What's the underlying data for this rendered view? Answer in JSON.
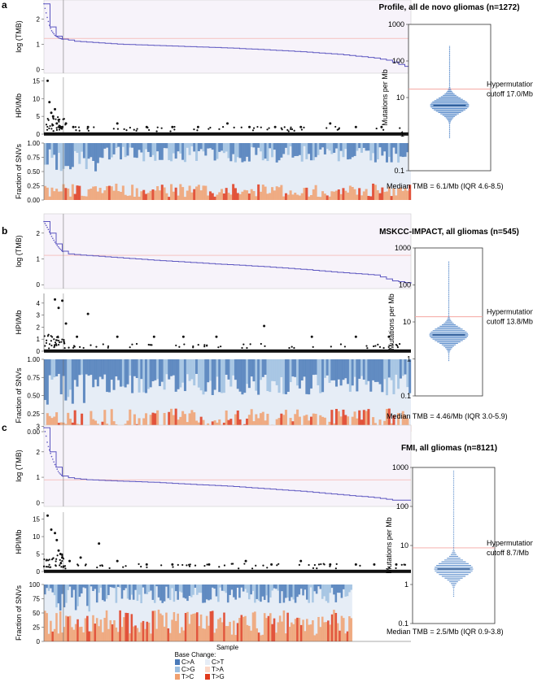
{
  "chart_data": [
    {
      "panel": "a",
      "type": "scatter",
      "title": "Profile, all de novo gliomas (n=1272)",
      "tmb_profile": {
        "ylabel": "log (TMB)",
        "yticks": [
          0,
          1,
          2
        ],
        "ylim": [
          -0.15,
          2.75
        ],
        "x": [
          0,
          0.005,
          0.01,
          0.015,
          0.02,
          0.03,
          0.04,
          0.05,
          0.06,
          0.08,
          0.1,
          0.15,
          0.2,
          0.3,
          0.4,
          0.5,
          0.6,
          0.7,
          0.8,
          0.9,
          0.94,
          0.97,
          1
        ],
        "y": [
          2.6,
          2.3,
          2.0,
          1.75,
          1.55,
          1.35,
          1.25,
          1.2,
          1.18,
          1.12,
          1.1,
          1.05,
          1.0,
          0.95,
          0.9,
          0.85,
          0.78,
          0.7,
          0.6,
          0.45,
          0.35,
          0.18,
          0.05
        ],
        "hline": 1.23,
        "vline": 0.053
      },
      "hp_profile": {
        "ylabel": "HPI/Mb",
        "yticks": [
          0,
          5,
          10,
          15
        ],
        "ylim": [
          0,
          16
        ],
        "points": [
          [
            0.01,
            15
          ],
          [
            0.015,
            9
          ],
          [
            0.02,
            6
          ],
          [
            0.025,
            5
          ],
          [
            0.03,
            7
          ],
          [
            0.035,
            3
          ],
          [
            0.04,
            4
          ],
          [
            0.045,
            2
          ],
          [
            0.05,
            2
          ],
          [
            0.06,
            3
          ],
          [
            0.08,
            2
          ],
          [
            0.12,
            2
          ],
          [
            0.2,
            3
          ],
          [
            0.28,
            2
          ],
          [
            0.35,
            2
          ],
          [
            0.42,
            2
          ],
          [
            0.5,
            3
          ],
          [
            0.56,
            2
          ],
          [
            0.63,
            2
          ],
          [
            0.7,
            2
          ],
          [
            0.78,
            3
          ],
          [
            0.85,
            2
          ],
          [
            0.92,
            2
          ]
        ]
      },
      "snv_fraction": {
        "ylabel": "Fraction of SNVs",
        "yticks": [
          "0.00",
          "0.25",
          "0.50",
          "0.75",
          "1.00"
        ],
        "blue_top": 0.95,
        "orange_level": 0.18
      },
      "distribution": {
        "ylabel": "Mutations per Mb",
        "yticks": [
          "0.1",
          "1",
          "10",
          "100",
          "1000"
        ],
        "median": 6.1,
        "cutoff": 17.0,
        "low": 0.8,
        "high": 250,
        "cutoff_label_1": "Hypermutation",
        "cutoff_label_2": "cutoff 17.0/Mb",
        "median_text": "Median TMB = 6.1/Mb (IQR 4.6-8.5)"
      }
    },
    {
      "panel": "b",
      "type": "scatter",
      "title": "MSKCC-IMPACT, all gliomas (n=545)",
      "tmb_profile": {
        "ylabel": "log (TMB)",
        "yticks": [
          0,
          1,
          2
        ],
        "ylim": [
          -0.15,
          2.75
        ],
        "x": [
          0,
          0.01,
          0.02,
          0.03,
          0.04,
          0.05,
          0.06,
          0.1,
          0.2,
          0.3,
          0.45,
          0.6,
          0.7,
          0.8,
          0.9,
          0.95,
          1
        ],
        "y": [
          2.45,
          2.2,
          1.9,
          1.65,
          1.45,
          1.3,
          1.2,
          1.15,
          1.05,
          0.95,
          0.82,
          0.7,
          0.6,
          0.48,
          0.38,
          0.15,
          0.05
        ],
        "hline": 1.14,
        "vline": 0.053
      },
      "hp_profile": {
        "ylabel": "HPI/Mb",
        "yticks": [
          0,
          1,
          2,
          3,
          4
        ],
        "ylim": [
          0,
          4.8
        ],
        "points": [
          [
            0.03,
            4.3
          ],
          [
            0.04,
            3.6
          ],
          [
            0.05,
            4.2
          ],
          [
            0.06,
            2.3
          ],
          [
            0.09,
            1.2
          ],
          [
            0.12,
            3.1
          ],
          [
            0.2,
            1.2
          ],
          [
            0.3,
            1.2
          ],
          [
            0.38,
            1.2
          ],
          [
            0.47,
            1.2
          ],
          [
            0.6,
            2.1
          ],
          [
            0.73,
            1.2
          ],
          [
            0.85,
            1.2
          ],
          [
            0.94,
            1.2
          ]
        ]
      },
      "snv_fraction": {
        "ylabel": "Fraction of SNVs",
        "yticks": [
          "0.00",
          "0.25",
          "0.50",
          "0.75",
          "1.00"
        ],
        "blue_top": 0.8,
        "orange_level": 0.2
      },
      "distribution": {
        "ylabel": "Mutations per Mb",
        "yticks": [
          "0.1",
          "1",
          "10",
          "100",
          "1000"
        ],
        "median": 4.46,
        "cutoff": 13.8,
        "low": 0.9,
        "high": 420,
        "cutoff_label_1": "Hypermutation",
        "cutoff_label_2": "cutoff 13.8/Mb",
        "median_text": "Median TMB = 4.46/Mb (IQR 3.0-5.9)"
      }
    },
    {
      "panel": "c",
      "type": "scatter",
      "title": "FMI, all gliomas (n=8121)",
      "tmb_profile": {
        "ylabel": "log (TMB)",
        "yticks": [
          0,
          1,
          2,
          3
        ],
        "ylim": [
          -0.15,
          3.05
        ],
        "x": [
          0,
          0.005,
          0.01,
          0.02,
          0.03,
          0.04,
          0.05,
          0.06,
          0.08,
          0.12,
          0.2,
          0.3,
          0.4,
          0.5,
          0.6,
          0.7,
          0.8,
          0.9,
          0.95,
          1
        ],
        "y": [
          2.95,
          2.7,
          2.3,
          1.85,
          1.5,
          1.2,
          1.05,
          1.0,
          0.95,
          0.9,
          0.85,
          0.8,
          0.72,
          0.65,
          0.55,
          0.45,
          0.32,
          0.2,
          0.1,
          0.1
        ],
        "hline": 0.9,
        "vline": 0.053
      },
      "hp_profile": {
        "ylabel": "HPI/Mb",
        "yticks": [
          0,
          5,
          10,
          15
        ],
        "ylim": [
          0,
          17
        ],
        "points": [
          [
            0.01,
            16
          ],
          [
            0.02,
            12
          ],
          [
            0.03,
            11
          ],
          [
            0.035,
            9
          ],
          [
            0.04,
            6
          ],
          [
            0.045,
            5
          ],
          [
            0.05,
            4
          ],
          [
            0.07,
            3
          ],
          [
            0.1,
            4
          ],
          [
            0.15,
            8
          ],
          [
            0.2,
            3
          ],
          [
            0.28,
            2
          ],
          [
            0.35,
            2
          ],
          [
            0.45,
            2
          ],
          [
            0.55,
            3
          ],
          [
            0.62,
            2
          ],
          [
            0.7,
            3
          ],
          [
            0.78,
            2
          ],
          [
            0.85,
            2
          ],
          [
            0.9,
            2
          ],
          [
            0.96,
            2
          ]
        ]
      },
      "snv_fraction": {
        "ylabel": "Fraction of SNVs",
        "yticks": [
          "0",
          "25",
          "50",
          "75",
          "100"
        ],
        "blue_top": 0.97,
        "orange_level": 0.35,
        "xlabel": "Sample",
        "bar_extent": 0.84
      },
      "distribution": {
        "ylabel": "Mutations per Mb",
        "yticks": [
          "0.1",
          "1",
          "10",
          "100",
          "1000"
        ],
        "median": 2.5,
        "cutoff": 8.7,
        "low": 0.5,
        "high": 800,
        "cutoff_label_1": "Hypermutation",
        "cutoff_label_2": "cutoff 8.7/Mb",
        "median_text": "Median TMB = 2.5/Mb (IQR 0.9-3.8)"
      }
    }
  ],
  "legend": {
    "title": "Base Change:",
    "items": [
      {
        "label": "C>A",
        "color": "#4a7ab9"
      },
      {
        "label": "C>G",
        "color": "#9dbfe0"
      },
      {
        "label": "T>C",
        "color": "#f0a070"
      },
      {
        "label": "C>T",
        "color": "#e6edf6"
      },
      {
        "label": "T>A",
        "color": "#fbd8c8"
      },
      {
        "label": "T>G",
        "color": "#e03a1c"
      }
    ]
  },
  "colors": {
    "tmb_line": "#5b55c0",
    "cutoff_line": "#f4a6a0",
    "profile_bg": "#f7f3fa",
    "dist_point": "#3d78c2",
    "hp_point": "#111111"
  }
}
